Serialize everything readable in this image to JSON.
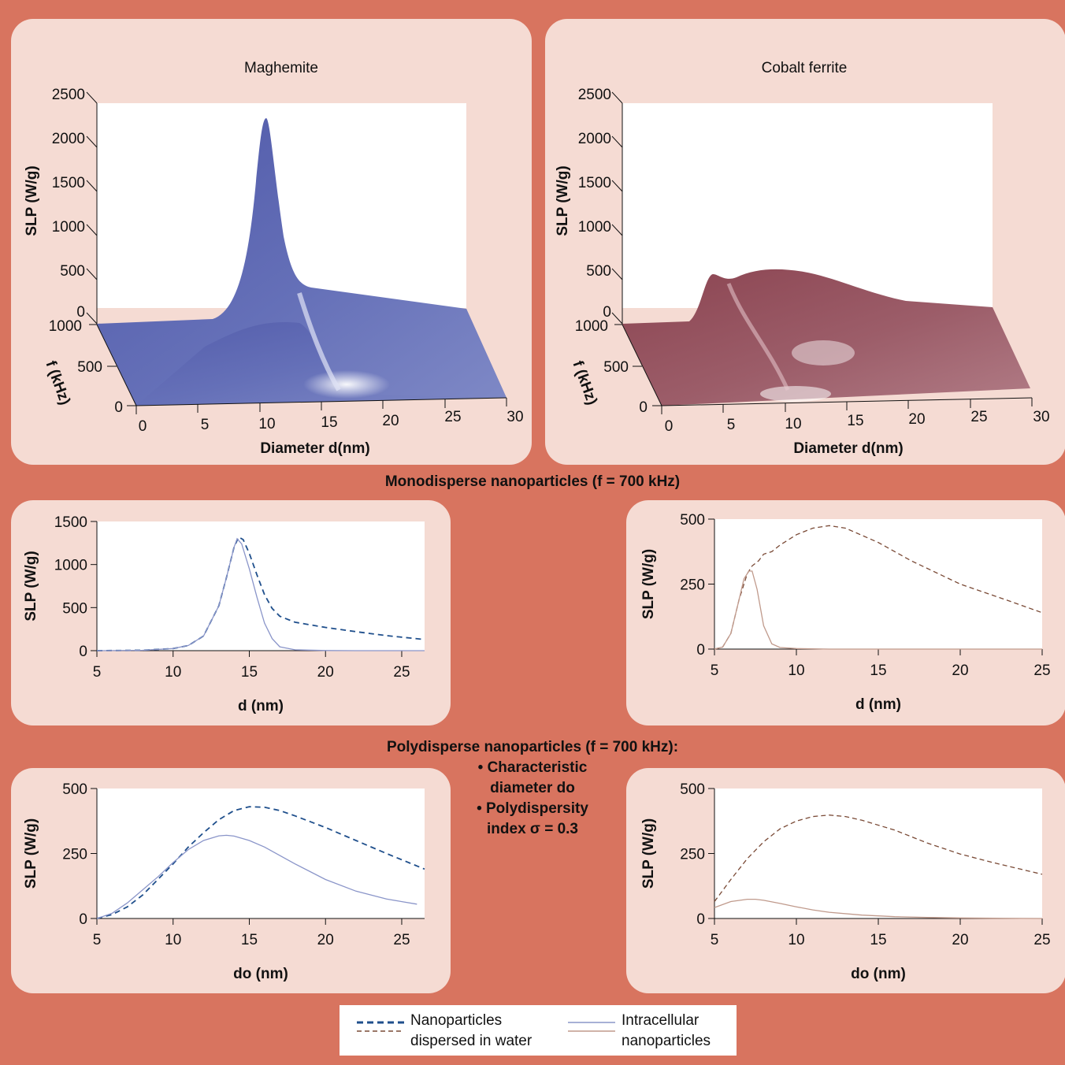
{
  "colors": {
    "background": "#d8745f",
    "panel": "#f5dbd3",
    "maghemite_surface": "#5b64b1",
    "cobalt_surface": "#9a5865",
    "maghemite_water": "#1f4f8c",
    "maghemite_cell": "#8a95c9",
    "cobalt_water": "#7a4a36",
    "cobalt_cell": "#c09a8c"
  },
  "surface_panels": {
    "maghemite": {
      "title": "Maghemite",
      "zlabel": "SLP (W/g)",
      "ylabel": "f (kHz)",
      "xlabel": "Diameter d(nm)",
      "z_ticks": [
        "2500",
        "2000",
        "1500",
        "1000",
        "500",
        "0"
      ],
      "y_ticks": [
        "1000",
        "500",
        "0"
      ],
      "x_ticks": [
        "0",
        "5",
        "10",
        "15",
        "20",
        "25",
        "30"
      ]
    },
    "cobalt": {
      "title": "Cobalt ferrite",
      "zlabel": "SLP (W/g)",
      "ylabel": "f (kHz)",
      "xlabel": "Diameter d(nm)",
      "z_ticks": [
        "2500",
        "2000",
        "1500",
        "1000",
        "500",
        "0"
      ],
      "y_ticks": [
        "1000",
        "500",
        "0"
      ],
      "x_ticks": [
        "0",
        "5",
        "10",
        "15",
        "20",
        "25",
        "30"
      ]
    }
  },
  "sections": {
    "mono_title": "Monodisperse nanoparticles (f = 700 kHz)",
    "poly_title": "Polydisperse nanoparticles (f = 700 kHz):",
    "poly_bullet1_line1": "• Characteristic",
    "poly_bullet1_line2": "diameter do",
    "poly_bullet2_line1": "• Polydispersity",
    "poly_bullet2_line2": "index σ = 0.3"
  },
  "legend": {
    "water_line1": "Nanoparticles",
    "water_line2": "dispersed in water",
    "cell_line1": "Intracellular",
    "cell_line2": "nanoparticles"
  },
  "chart_data": [
    {
      "id": "maghemite_surface",
      "type": "area",
      "title": "Maghemite",
      "xlabel": "Diameter d(nm)",
      "ylabel": "f (kHz)",
      "zlabel": "SLP (W/g)",
      "xlim": [
        0,
        30
      ],
      "ylim": [
        0,
        1000
      ],
      "zlim": [
        0,
        2500
      ],
      "peak": {
        "d": 14,
        "f": 1000,
        "slp": 2250
      }
    },
    {
      "id": "cobalt_surface",
      "type": "area",
      "title": "Cobalt ferrite",
      "xlabel": "Diameter d(nm)",
      "ylabel": "f (kHz)",
      "zlabel": "SLP (W/g)",
      "xlim": [
        0,
        30
      ],
      "ylim": [
        0,
        1000
      ],
      "zlim": [
        0,
        2500
      ],
      "peak": {
        "d": 7,
        "f": 1000,
        "slp": 500
      }
    },
    {
      "id": "mono_maghemite",
      "type": "line",
      "xlabel": "d (nm)",
      "ylabel": "SLP (W/g)",
      "xlim": [
        5,
        26.5
      ],
      "ylim": [
        0,
        1500
      ],
      "xticks": [
        5,
        10,
        15,
        20,
        25
      ],
      "yticks": [
        0,
        500,
        1000,
        1500
      ],
      "series": [
        {
          "style": "water",
          "x": [
            5,
            8,
            10,
            11,
            12,
            13,
            13.5,
            14,
            14.3,
            14.6,
            15,
            15.5,
            16,
            16.5,
            17,
            18,
            20,
            22,
            24,
            26.5
          ],
          "y": [
            0,
            5,
            25,
            60,
            170,
            520,
            850,
            1200,
            1320,
            1290,
            1130,
            880,
            650,
            490,
            400,
            330,
            270,
            220,
            175,
            130
          ]
        },
        {
          "style": "cell",
          "x": [
            5,
            8,
            10,
            11,
            12,
            13,
            13.5,
            14,
            14.2,
            14.5,
            15,
            15.5,
            16,
            16.5,
            17,
            18,
            20,
            22,
            26.5
          ],
          "y": [
            0,
            5,
            25,
            60,
            170,
            520,
            850,
            1200,
            1300,
            1240,
            950,
            620,
            320,
            140,
            45,
            10,
            2,
            0,
            0
          ]
        }
      ]
    },
    {
      "id": "mono_cobalt",
      "type": "line",
      "xlabel": "d (nm)",
      "ylabel": "SLP (W/g)",
      "xlim": [
        5,
        25
      ],
      "ylim": [
        0,
        500
      ],
      "xticks": [
        5,
        10,
        15,
        20,
        25
      ],
      "yticks": [
        0,
        250,
        500
      ],
      "series": [
        {
          "style": "water",
          "x": [
            5,
            5.5,
            6,
            6.5,
            7,
            7.3,
            7.7,
            8,
            8.5,
            9,
            10,
            11,
            12,
            13,
            15,
            17,
            20,
            23,
            25
          ],
          "y": [
            0,
            8,
            60,
            190,
            290,
            320,
            340,
            365,
            375,
            400,
            440,
            465,
            475,
            465,
            410,
            340,
            250,
            185,
            140
          ]
        },
        {
          "style": "cell",
          "x": [
            5,
            5.5,
            6,
            6.5,
            6.8,
            7.1,
            7.3,
            7.6,
            8,
            8.5,
            9,
            10,
            12,
            25
          ],
          "y": [
            0,
            8,
            60,
            190,
            270,
            300,
            300,
            230,
            90,
            20,
            6,
            2,
            0,
            0
          ]
        }
      ]
    },
    {
      "id": "poly_maghemite",
      "type": "line",
      "xlabel": "do (nm)",
      "ylabel": "SLP (W/g)",
      "xlim": [
        5,
        26.5
      ],
      "ylim": [
        0,
        500
      ],
      "xticks": [
        5,
        10,
        15,
        20,
        25
      ],
      "yticks": [
        0,
        250,
        500
      ],
      "series": [
        {
          "style": "water",
          "x": [
            5,
            6,
            7,
            8,
            9,
            10,
            11,
            12,
            13,
            14,
            15,
            16,
            17,
            18,
            20,
            22,
            24,
            26.5
          ],
          "y": [
            0,
            15,
            45,
            90,
            150,
            210,
            275,
            330,
            380,
            415,
            430,
            428,
            415,
            395,
            350,
            300,
            250,
            190
          ]
        },
        {
          "style": "cell",
          "x": [
            5,
            6,
            7,
            8,
            9,
            10,
            11,
            12,
            13,
            13.5,
            14,
            15,
            16,
            18,
            20,
            22,
            24,
            26
          ],
          "y": [
            0,
            20,
            60,
            110,
            160,
            215,
            265,
            300,
            318,
            320,
            317,
            300,
            275,
            210,
            150,
            105,
            75,
            55
          ]
        }
      ]
    },
    {
      "id": "poly_cobalt",
      "type": "line",
      "xlabel": "do (nm)",
      "ylabel": "SLP (W/g)",
      "xlim": [
        5,
        25
      ],
      "ylim": [
        0,
        500
      ],
      "xticks": [
        5,
        10,
        15,
        20,
        25
      ],
      "yticks": [
        0,
        250,
        500
      ],
      "series": [
        {
          "style": "water",
          "x": [
            5,
            6,
            7,
            8,
            9,
            10,
            11,
            12,
            13,
            14,
            16,
            18,
            20,
            22,
            25
          ],
          "y": [
            65,
            150,
            230,
            295,
            345,
            375,
            392,
            398,
            392,
            378,
            340,
            290,
            248,
            215,
            170
          ]
        },
        {
          "style": "cell",
          "x": [
            5,
            6,
            7,
            7.5,
            8,
            9,
            10,
            11,
            12,
            14,
            16,
            18,
            20,
            22,
            25
          ],
          "y": [
            42,
            65,
            74,
            74,
            70,
            58,
            45,
            33,
            24,
            13,
            7,
            4,
            2,
            1,
            0
          ]
        }
      ]
    }
  ]
}
